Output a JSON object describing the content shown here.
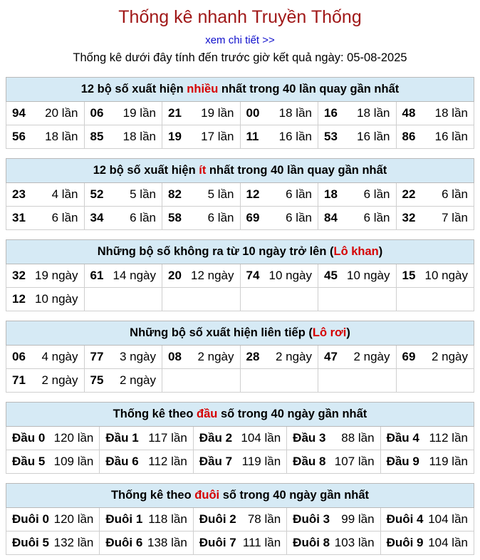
{
  "header": {
    "title": "Thống kê nhanh Truyền Thống",
    "link": "xem chi tiết >>",
    "subtitle": "Thống kê dưới đây tính đến trước giờ kết quả ngày: 05-08-2025"
  },
  "sections": [
    {
      "title_pre": "12 bộ số xuất hiện ",
      "title_red": "nhiều",
      "title_post": " nhất trong 40 lần quay gần nhất",
      "rows": [
        [
          [
            "94",
            "20 lần"
          ],
          [
            "06",
            "19 lần"
          ],
          [
            "21",
            "19 lần"
          ],
          [
            "00",
            "18 lần"
          ],
          [
            "16",
            "18 lần"
          ],
          [
            "48",
            "18 lần"
          ]
        ],
        [
          [
            "56",
            "18 lần"
          ],
          [
            "85",
            "18 lần"
          ],
          [
            "19",
            "17 lần"
          ],
          [
            "11",
            "16 lần"
          ],
          [
            "53",
            "16 lần"
          ],
          [
            "86",
            "16 lần"
          ]
        ]
      ]
    },
    {
      "title_pre": "12 bộ số xuất hiện ",
      "title_red": "ít",
      "title_post": " nhất trong 40 lần quay gần nhất",
      "rows": [
        [
          [
            "23",
            "4 lần"
          ],
          [
            "52",
            "5 lần"
          ],
          [
            "82",
            "5 lần"
          ],
          [
            "12",
            "6 lần"
          ],
          [
            "18",
            "6 lần"
          ],
          [
            "22",
            "6 lần"
          ]
        ],
        [
          [
            "31",
            "6 lần"
          ],
          [
            "34",
            "6 lần"
          ],
          [
            "58",
            "6 lần"
          ],
          [
            "69",
            "6 lần"
          ],
          [
            "84",
            "6 lần"
          ],
          [
            "32",
            "7 lần"
          ]
        ]
      ]
    },
    {
      "title_pre": "Những bộ số không ra từ 10 ngày trở lên (",
      "title_red": "Lô khan",
      "title_post": ")",
      "rows": [
        [
          [
            "32",
            "19 ngày"
          ],
          [
            "61",
            "14 ngày"
          ],
          [
            "20",
            "12 ngày"
          ],
          [
            "74",
            "10 ngày"
          ],
          [
            "45",
            "10 ngày"
          ],
          [
            "15",
            "10 ngày"
          ]
        ],
        [
          [
            "12",
            "10 ngày"
          ],
          [
            "",
            ""
          ],
          [
            "",
            ""
          ],
          [
            "",
            ""
          ],
          [
            "",
            ""
          ],
          [
            "",
            ""
          ]
        ]
      ]
    },
    {
      "title_pre": "Những bộ số xuất hiện liên tiếp (",
      "title_red": "Lô rơi",
      "title_post": ")",
      "rows": [
        [
          [
            "06",
            "4 ngày"
          ],
          [
            "77",
            "3 ngày"
          ],
          [
            "08",
            "2 ngày"
          ],
          [
            "28",
            "2 ngày"
          ],
          [
            "47",
            "2 ngày"
          ],
          [
            "69",
            "2 ngày"
          ]
        ],
        [
          [
            "71",
            "2 ngày"
          ],
          [
            "75",
            "2 ngày"
          ],
          [
            "",
            ""
          ],
          [
            "",
            ""
          ],
          [
            "",
            ""
          ],
          [
            "",
            ""
          ]
        ]
      ]
    },
    {
      "title_pre": "Thống kê theo ",
      "title_red": "đầu",
      "title_post": " số trong 40 ngày gần nhất",
      "rows": [
        [
          [
            "Đầu 0",
            "120 lần"
          ],
          [
            "Đầu 1",
            "117 lần"
          ],
          [
            "Đầu 2",
            "104 lần"
          ],
          [
            "Đầu 3",
            "88 lần"
          ],
          [
            "Đầu 4",
            "112 lần"
          ]
        ],
        [
          [
            "Đầu 5",
            "109 lần"
          ],
          [
            "Đầu 6",
            "112 lần"
          ],
          [
            "Đầu 7",
            "119 lần"
          ],
          [
            "Đầu 8",
            "107 lần"
          ],
          [
            "Đầu 9",
            "119 lần"
          ]
        ]
      ]
    },
    {
      "title_pre": "Thống kê theo ",
      "title_red": "đuôi",
      "title_post": " số trong 40 ngày gần nhất",
      "rows": [
        [
          [
            "Đuôi 0",
            "120 lần"
          ],
          [
            "Đuôi 1",
            "118 lần"
          ],
          [
            "Đuôi 2",
            "78 lần"
          ],
          [
            "Đuôi 3",
            "99 lần"
          ],
          [
            "Đuôi 4",
            "104 lần"
          ]
        ],
        [
          [
            "Đuôi 5",
            "132 lần"
          ],
          [
            "Đuôi 6",
            "138 lần"
          ],
          [
            "Đuôi 7",
            "111 lần"
          ],
          [
            "Đuôi 8",
            "103 lần"
          ],
          [
            "Đuôi 9",
            "104 lần"
          ]
        ]
      ]
    }
  ],
  "colors": {
    "header_bg": "#d6eaf5",
    "title": "#a01818",
    "accent_red": "#d60000",
    "link": "#1010cc"
  }
}
